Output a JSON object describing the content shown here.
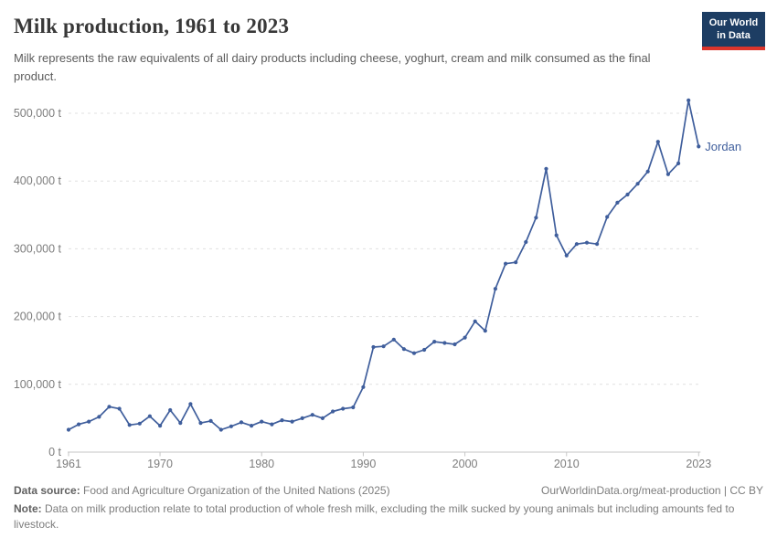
{
  "header": {
    "title": "Milk production, 1961 to 2023",
    "subtitle": "Milk represents the raw equivalents of all dairy products including cheese, yoghurt, cream and milk consumed as the final product.",
    "logo": {
      "line1": "Our World",
      "line2": "in Data",
      "bg_color": "#1d3d63",
      "accent_color": "#dc352c"
    }
  },
  "chart_data": {
    "type": "line",
    "title": "Milk production, 1961 to 2023",
    "xlabel": "",
    "ylabel": "",
    "unit": "t",
    "grid": "horizontal-dashed",
    "legend_position": "end-of-line-label",
    "xlim": [
      1961,
      2023
    ],
    "ylim": [
      0,
      530000
    ],
    "x_ticks": [
      1961,
      1970,
      1980,
      1990,
      2000,
      2010,
      2023
    ],
    "y_ticks": [
      0,
      100000,
      200000,
      300000,
      400000,
      500000
    ],
    "y_tick_labels": [
      "0 t",
      "100,000 t",
      "200,000 t",
      "300,000 t",
      "400,000 t",
      "500,000 t"
    ],
    "series": [
      {
        "name": "Jordan",
        "color": "#3f5e9c",
        "x": [
          1961,
          1962,
          1963,
          1964,
          1965,
          1966,
          1967,
          1968,
          1969,
          1970,
          1971,
          1972,
          1973,
          1974,
          1975,
          1976,
          1977,
          1978,
          1979,
          1980,
          1981,
          1982,
          1983,
          1984,
          1985,
          1986,
          1987,
          1988,
          1989,
          1990,
          1991,
          1992,
          1993,
          1994,
          1995,
          1996,
          1997,
          1998,
          1999,
          2000,
          2001,
          2002,
          2003,
          2004,
          2005,
          2006,
          2007,
          2008,
          2009,
          2010,
          2011,
          2012,
          2013,
          2014,
          2015,
          2016,
          2017,
          2018,
          2019,
          2020,
          2021,
          2022,
          2023
        ],
        "values": [
          33000,
          41000,
          45000,
          52000,
          67000,
          64000,
          40000,
          42000,
          53000,
          39000,
          62000,
          43000,
          71000,
          43000,
          46000,
          33000,
          38000,
          44000,
          39000,
          45000,
          41000,
          47000,
          45000,
          50000,
          55000,
          50000,
          60000,
          64000,
          66000,
          96000,
          155000,
          156000,
          166000,
          152000,
          146000,
          151000,
          163000,
          161000,
          159000,
          169000,
          193000,
          179000,
          241000,
          278000,
          280000,
          310000,
          346000,
          418000,
          320000,
          290000,
          307000,
          309000,
          307000,
          347000,
          368000,
          380000,
          396000,
          414000,
          458000,
          410000,
          426000,
          519000,
          451000
        ]
      }
    ]
  },
  "footer": {
    "source_label": "Data source:",
    "source_text": " Food and Agriculture Organization of the United Nations (2025)",
    "link_text": "OurWorldinData.org/meat-production | CC BY",
    "note_label": "Note:",
    "note_text": " Data on milk production relate to total production of whole fresh milk, excluding the milk sucked by young animals but including amounts fed to livestock."
  },
  "colors": {
    "series_blue": "#3f5e9c",
    "grid_gray": "#e0e0e0",
    "axis_gray": "#c6c6c6",
    "tick_text_gray": "#7d7d7d"
  }
}
